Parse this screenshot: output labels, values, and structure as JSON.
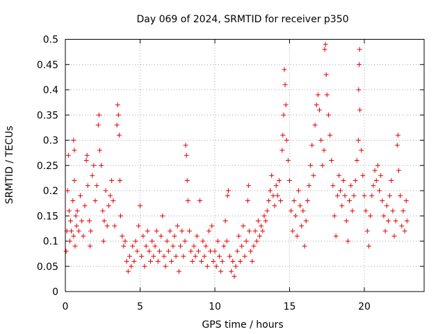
{
  "chart_data": {
    "type": "scatter",
    "title": "Day 069 of 2024, SRMTID for receiver p350",
    "xlabel": "GPS time / hours",
    "ylabel": "SRMTID / TECUs",
    "xlim": [
      0,
      24
    ],
    "ylim": [
      0,
      0.5
    ],
    "x_ticks": [
      0,
      5,
      10,
      15,
      20
    ],
    "x_tick_labels": [
      "0",
      "5",
      "10",
      "15",
      "20"
    ],
    "y_ticks": [
      0,
      0.05,
      0.1,
      0.15,
      0.2,
      0.25,
      0.3,
      0.35,
      0.4,
      0.45,
      0.5
    ],
    "y_tick_labels": [
      "0",
      "0.05",
      "0.1",
      "0.15",
      "0.2",
      "0.25",
      "0.3",
      "0.35",
      "0.4",
      "0.45",
      "0.5"
    ],
    "grid": true,
    "marker": "+",
    "series": [
      {
        "name": "SRMTID",
        "color": "#e00000",
        "points": [
          [
            0.05,
            0.08
          ],
          [
            0.1,
            0.12
          ],
          [
            0.15,
            0.2
          ],
          [
            0.2,
            0.27
          ],
          [
            0.25,
            0.16
          ],
          [
            0.3,
            0.1
          ],
          [
            0.35,
            0.14
          ],
          [
            0.4,
            0.12
          ],
          [
            0.5,
            0.18
          ],
          [
            0.55,
            0.11
          ],
          [
            0.6,
            0.22
          ],
          [
            0.65,
            0.09
          ],
          [
            0.7,
            0.15
          ],
          [
            0.75,
            0.13
          ],
          [
            0.55,
            0.3
          ],
          [
            0.6,
            0.28
          ],
          [
            0.8,
            0.16
          ],
          [
            0.9,
            0.12
          ],
          [
            1.0,
            0.19
          ],
          [
            1.1,
            0.14
          ],
          [
            1.2,
            0.11
          ],
          [
            1.3,
            0.17
          ],
          [
            1.4,
            0.26
          ],
          [
            1.45,
            0.27
          ],
          [
            1.5,
            0.21
          ],
          [
            1.6,
            0.14
          ],
          [
            1.65,
            0.09
          ],
          [
            1.7,
            0.12
          ],
          [
            1.8,
            0.23
          ],
          [
            1.9,
            0.25
          ],
          [
            2.0,
            0.18
          ],
          [
            2.1,
            0.21
          ],
          [
            2.2,
            0.33
          ],
          [
            2.25,
            0.35
          ],
          [
            2.3,
            0.28
          ],
          [
            2.4,
            0.25
          ],
          [
            2.5,
            0.16
          ],
          [
            2.55,
            0.1
          ],
          [
            2.6,
            0.14
          ],
          [
            2.7,
            0.2
          ],
          [
            2.8,
            0.13
          ],
          [
            2.9,
            0.17
          ],
          [
            3.0,
            0.19
          ],
          [
            3.1,
            0.22
          ],
          [
            3.2,
            0.18
          ],
          [
            3.3,
            0.13
          ],
          [
            3.45,
            0.33
          ],
          [
            3.5,
            0.37
          ],
          [
            3.55,
            0.35
          ],
          [
            3.6,
            0.31
          ],
          [
            3.65,
            0.22
          ],
          [
            3.7,
            0.15
          ],
          [
            3.8,
            0.11
          ],
          [
            3.9,
            0.09
          ],
          [
            4.0,
            0.1
          ],
          [
            4.1,
            0.06
          ],
          [
            4.2,
            0.04
          ],
          [
            4.3,
            0.07
          ],
          [
            4.4,
            0.05
          ],
          [
            4.5,
            0.09
          ],
          [
            4.6,
            0.06
          ],
          [
            4.7,
            0.1
          ],
          [
            4.8,
            0.08
          ],
          [
            4.9,
            0.13
          ],
          [
            5.0,
            0.17
          ],
          [
            5.1,
            0.07
          ],
          [
            5.2,
            0.11
          ],
          [
            5.3,
            0.05
          ],
          [
            5.4,
            0.09
          ],
          [
            5.5,
            0.12
          ],
          [
            5.6,
            0.08
          ],
          [
            5.7,
            0.06
          ],
          [
            5.8,
            0.1
          ],
          [
            5.9,
            0.07
          ],
          [
            6.0,
            0.09
          ],
          [
            6.1,
            0.12
          ],
          [
            6.2,
            0.06
          ],
          [
            6.3,
            0.08
          ],
          [
            6.4,
            0.11
          ],
          [
            6.5,
            0.15
          ],
          [
            6.6,
            0.07
          ],
          [
            6.7,
            0.05
          ],
          [
            6.8,
            0.1
          ],
          [
            6.9,
            0.08
          ],
          [
            7.0,
            0.12
          ],
          [
            7.1,
            0.06
          ],
          [
            7.2,
            0.09
          ],
          [
            7.3,
            0.11
          ],
          [
            7.4,
            0.07
          ],
          [
            7.5,
            0.13
          ],
          [
            7.6,
            0.04
          ],
          [
            7.7,
            0.09
          ],
          [
            7.8,
            0.12
          ],
          [
            7.9,
            0.07
          ],
          [
            8.0,
            0.1
          ],
          [
            8.05,
            0.29
          ],
          [
            8.1,
            0.27
          ],
          [
            8.15,
            0.22
          ],
          [
            8.2,
            0.18
          ],
          [
            8.3,
            0.12
          ],
          [
            8.4,
            0.08
          ],
          [
            8.5,
            0.06
          ],
          [
            8.6,
            0.09
          ],
          [
            8.7,
            0.07
          ],
          [
            8.8,
            0.11
          ],
          [
            8.9,
            0.08
          ],
          [
            9.0,
            0.18
          ],
          [
            9.1,
            0.06
          ],
          [
            9.2,
            0.1
          ],
          [
            9.3,
            0.07
          ],
          [
            9.4,
            0.09
          ],
          [
            9.5,
            0.05
          ],
          [
            9.6,
            0.12
          ],
          [
            9.7,
            0.08
          ],
          [
            9.8,
            0.13
          ],
          [
            9.9,
            0.06
          ],
          [
            10.0,
            0.08
          ],
          [
            10.1,
            0.05
          ],
          [
            10.2,
            0.1
          ],
          [
            10.3,
            0.07
          ],
          [
            10.4,
            0.04
          ],
          [
            10.5,
            0.06
          ],
          [
            10.6,
            0.09
          ],
          [
            10.7,
            0.14
          ],
          [
            10.8,
            0.1
          ],
          [
            10.85,
            0.19
          ],
          [
            10.9,
            0.2
          ],
          [
            11.0,
            0.07
          ],
          [
            11.1,
            0.04
          ],
          [
            11.2,
            0.06
          ],
          [
            11.3,
            0.03
          ],
          [
            11.4,
            0.05
          ],
          [
            11.5,
            0.08
          ],
          [
            11.6,
            0.11
          ],
          [
            11.7,
            0.06
          ],
          [
            11.8,
            0.09
          ],
          [
            11.9,
            0.13
          ],
          [
            12.0,
            0.07
          ],
          [
            12.1,
            0.1
          ],
          [
            12.2,
            0.18
          ],
          [
            12.25,
            0.21
          ],
          [
            12.3,
            0.12
          ],
          [
            12.4,
            0.08
          ],
          [
            12.5,
            0.06
          ],
          [
            12.6,
            0.09
          ],
          [
            12.7,
            0.12
          ],
          [
            12.8,
            0.1
          ],
          [
            12.9,
            0.14
          ],
          [
            13.0,
            0.11
          ],
          [
            13.1,
            0.13
          ],
          [
            13.2,
            0.12
          ],
          [
            13.3,
            0.15
          ],
          [
            13.4,
            0.14
          ],
          [
            13.5,
            0.16
          ],
          [
            13.6,
            0.18
          ],
          [
            13.7,
            0.2
          ],
          [
            13.8,
            0.23
          ],
          [
            13.9,
            0.19
          ],
          [
            14.0,
            0.17
          ],
          [
            14.1,
            0.21
          ],
          [
            14.2,
            0.19
          ],
          [
            14.3,
            0.22
          ],
          [
            14.4,
            0.18
          ],
          [
            14.5,
            0.28
          ],
          [
            14.55,
            0.31
          ],
          [
            14.6,
            0.35
          ],
          [
            14.65,
            0.44
          ],
          [
            14.7,
            0.41
          ],
          [
            14.75,
            0.37
          ],
          [
            14.8,
            0.3
          ],
          [
            14.9,
            0.26
          ],
          [
            15.0,
            0.22
          ],
          [
            15.1,
            0.16
          ],
          [
            15.2,
            0.12
          ],
          [
            15.3,
            0.18
          ],
          [
            15.4,
            0.15
          ],
          [
            15.5,
            0.11
          ],
          [
            15.6,
            0.2
          ],
          [
            15.7,
            0.17
          ],
          [
            15.8,
            0.13
          ],
          [
            15.9,
            0.16
          ],
          [
            16.0,
            0.09
          ],
          [
            16.1,
            0.14
          ],
          [
            16.2,
            0.18
          ],
          [
            16.3,
            0.21
          ],
          [
            16.4,
            0.25
          ],
          [
            16.5,
            0.29
          ],
          [
            16.6,
            0.23
          ],
          [
            16.7,
            0.33
          ],
          [
            16.8,
            0.37
          ],
          [
            16.9,
            0.39
          ],
          [
            17.0,
            0.36
          ],
          [
            17.1,
            0.3
          ],
          [
            17.2,
            0.25
          ],
          [
            17.3,
            0.28
          ],
          [
            17.35,
            0.48
          ],
          [
            17.4,
            0.49
          ],
          [
            17.45,
            0.43
          ],
          [
            17.5,
            0.39
          ],
          [
            17.6,
            0.35
          ],
          [
            17.7,
            0.31
          ],
          [
            17.8,
            0.26
          ],
          [
            17.9,
            0.21
          ],
          [
            18.0,
            0.15
          ],
          [
            18.1,
            0.11
          ],
          [
            18.2,
            0.19
          ],
          [
            18.3,
            0.23
          ],
          [
            18.4,
            0.2
          ],
          [
            18.5,
            0.17
          ],
          [
            18.6,
            0.22
          ],
          [
            18.7,
            0.19
          ],
          [
            18.8,
            0.14
          ],
          [
            18.9,
            0.1
          ],
          [
            19.0,
            0.18
          ],
          [
            19.1,
            0.21
          ],
          [
            19.2,
            0.16
          ],
          [
            19.3,
            0.19
          ],
          [
            19.4,
            0.22
          ],
          [
            19.5,
            0.26
          ],
          [
            19.6,
            0.3
          ],
          [
            19.62,
            0.4
          ],
          [
            19.65,
            0.45
          ],
          [
            19.68,
            0.48
          ],
          [
            19.7,
            0.36
          ],
          [
            19.8,
            0.28
          ],
          [
            19.9,
            0.23
          ],
          [
            20.0,
            0.19
          ],
          [
            20.1,
            0.16
          ],
          [
            20.2,
            0.12
          ],
          [
            20.3,
            0.09
          ],
          [
            20.4,
            0.15
          ],
          [
            20.5,
            0.19
          ],
          [
            20.6,
            0.21
          ],
          [
            20.7,
            0.24
          ],
          [
            20.8,
            0.22
          ],
          [
            20.9,
            0.25
          ],
          [
            21.0,
            0.2
          ],
          [
            21.1,
            0.23
          ],
          [
            21.2,
            0.18
          ],
          [
            21.3,
            0.15
          ],
          [
            21.4,
            0.12
          ],
          [
            21.5,
            0.17
          ],
          [
            21.6,
            0.14
          ],
          [
            21.7,
            0.19
          ],
          [
            21.8,
            0.22
          ],
          [
            21.9,
            0.16
          ],
          [
            22.0,
            0.11
          ],
          [
            22.1,
            0.14
          ],
          [
            22.2,
            0.29
          ],
          [
            22.25,
            0.31
          ],
          [
            22.3,
            0.24
          ],
          [
            22.4,
            0.19
          ],
          [
            22.5,
            0.13
          ],
          [
            22.6,
            0.16
          ],
          [
            22.7,
            0.12
          ],
          [
            22.8,
            0.18
          ],
          [
            22.85,
            0.14
          ]
        ]
      }
    ]
  }
}
